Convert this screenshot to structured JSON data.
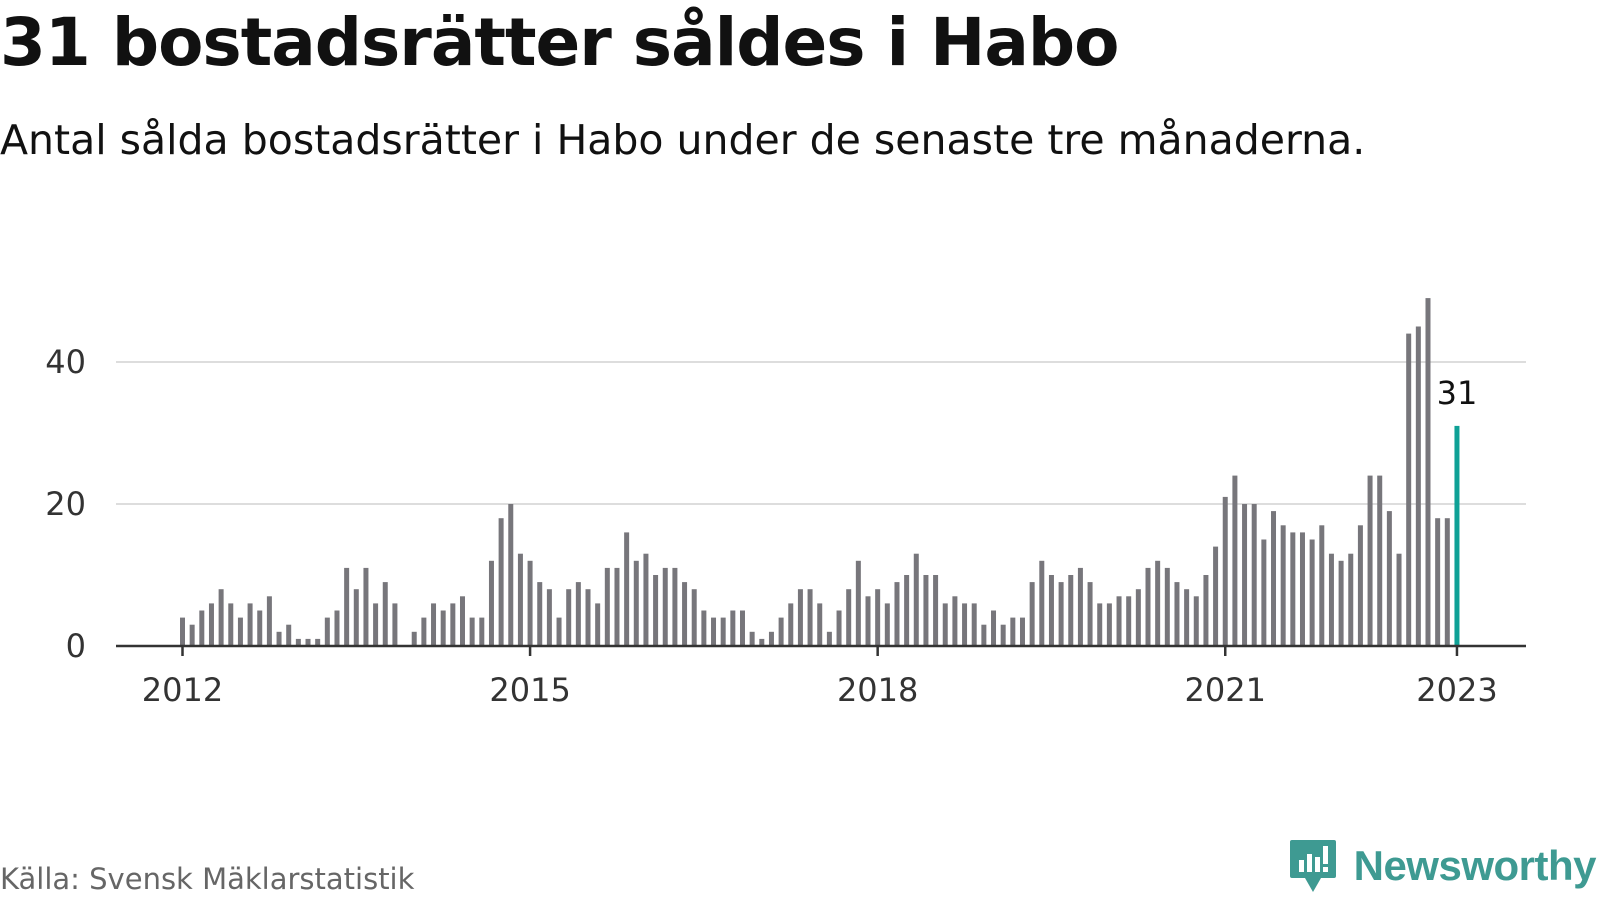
{
  "title": "31 bostadsrätter såldes i Habo",
  "subtitle": "Antal sålda bostadsrätter i Habo under de senaste tre månaderna.",
  "source": "Källa: Svensk Mäklarstatistik",
  "brand": {
    "name": "Newsworthy",
    "icon": "newsworthy-logo-icon",
    "color": "#3e9a92"
  },
  "colors": {
    "bar": "#77767b",
    "highlight": "#0ea196",
    "grid": "#dddddd",
    "axis": "#333333"
  },
  "chart_data": {
    "type": "bar",
    "title": "31 bostadsrätter såldes i Habo",
    "subtitle": "Antal sålda bostadsrätter i Habo under de senaste tre månaderna.",
    "start": "2012-01",
    "frequency": "monthly",
    "ylim": [
      0,
      50
    ],
    "yticks": [
      0,
      20,
      40
    ],
    "xticks": [
      "2012",
      "2015",
      "2018",
      "2021",
      "2023"
    ],
    "grid": true,
    "legend": "none",
    "highlight": {
      "index": 132,
      "label": "31"
    },
    "values": [
      4,
      3,
      5,
      6,
      8,
      6,
      4,
      6,
      5,
      7,
      2,
      3,
      1,
      1,
      1,
      4,
      5,
      11,
      8,
      11,
      6,
      9,
      6,
      0,
      2,
      4,
      6,
      5,
      6,
      7,
      4,
      4,
      12,
      18,
      20,
      13,
      12,
      9,
      8,
      4,
      8,
      9,
      8,
      6,
      11,
      11,
      16,
      12,
      13,
      10,
      11,
      11,
      9,
      8,
      5,
      4,
      4,
      5,
      5,
      2,
      1,
      2,
      4,
      6,
      8,
      8,
      6,
      2,
      5,
      8,
      12,
      7,
      8,
      6,
      9,
      10,
      13,
      10,
      10,
      6,
      7,
      6,
      6,
      3,
      5,
      3,
      4,
      4,
      9,
      12,
      10,
      9,
      10,
      11,
      9,
      6,
      6,
      7,
      7,
      8,
      11,
      12,
      11,
      9,
      8,
      7,
      10,
      14,
      21,
      24,
      20,
      20,
      15,
      19,
      17,
      16,
      16,
      15,
      17,
      13,
      12,
      13,
      17,
      24,
      24,
      19,
      13,
      44,
      45,
      49,
      18,
      18,
      31
    ]
  }
}
